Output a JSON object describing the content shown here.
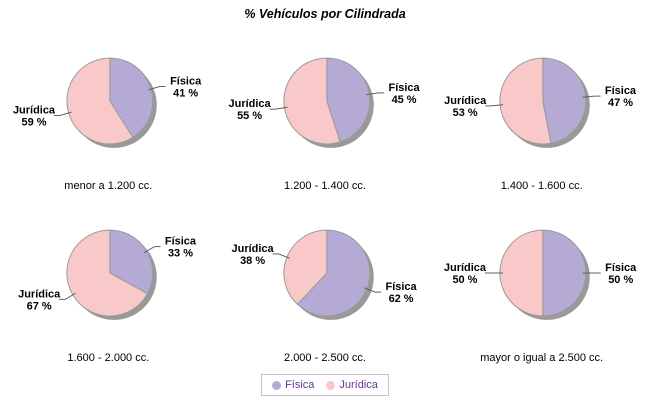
{
  "window": {
    "background": "#ffffff"
  },
  "chart_data": {
    "type": "pie",
    "title": "% Vehículos por Cilindrada",
    "legend_position": "bottom",
    "grid": "3x2 small multiples",
    "series": [
      {
        "name": "Física",
        "color": "#b4aad4"
      },
      {
        "name": "Jurídica",
        "color": "#f9c9ca"
      }
    ],
    "value_suffix": " %",
    "pies": [
      {
        "category": "menor a 1.200 cc.",
        "fisica": 41,
        "juridica": 59
      },
      {
        "category": "1.200 - 1.400 cc.",
        "fisica": 45,
        "juridica": 55
      },
      {
        "category": "1.400 - 1.600 cc.",
        "fisica": 47,
        "juridica": 53
      },
      {
        "category": "1.600 - 2.000 cc.",
        "fisica": 33,
        "juridica": 67
      },
      {
        "category": "2.000 - 2.500 cc.",
        "fisica": 62,
        "juridica": 38
      },
      {
        "category": "mayor o igual a 2.500 cc.",
        "fisica": 50,
        "juridica": 50
      }
    ]
  },
  "style": {
    "shadow_color": "#999999",
    "outline_color": "#9a9a9a",
    "leader_color": "#606060",
    "label_color": "#000000",
    "legend_text_color": "#663399",
    "legend_border_color": "#c6c0d2"
  },
  "legend": {
    "items": [
      {
        "label": "Física",
        "color": "#b4aad4"
      },
      {
        "label": "Jurídica",
        "color": "#f9c9ca"
      }
    ]
  }
}
